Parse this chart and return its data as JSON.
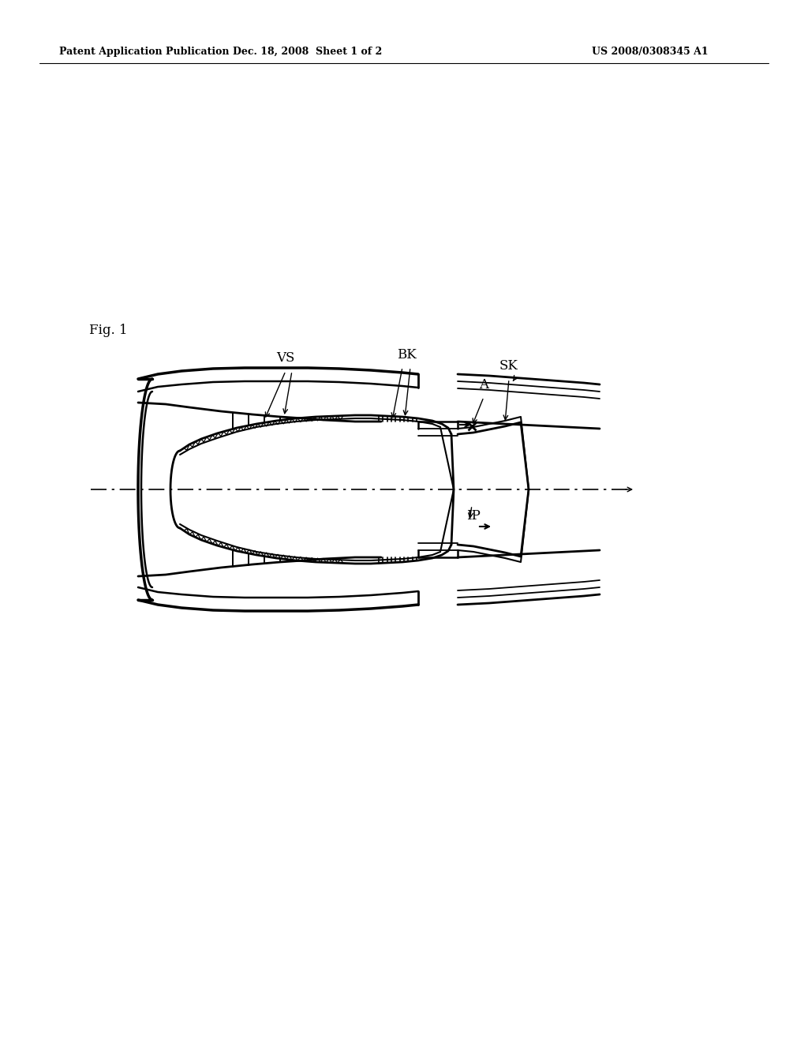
{
  "background_color": "#ffffff",
  "header_left": "Patent Application Publication",
  "header_center": "Dec. 18, 2008  Sheet 1 of 2",
  "header_right": "US 2008/0308345 A1",
  "header_fontsize": 9,
  "fig_label": "Fig. 1",
  "label_fontsize": 12
}
